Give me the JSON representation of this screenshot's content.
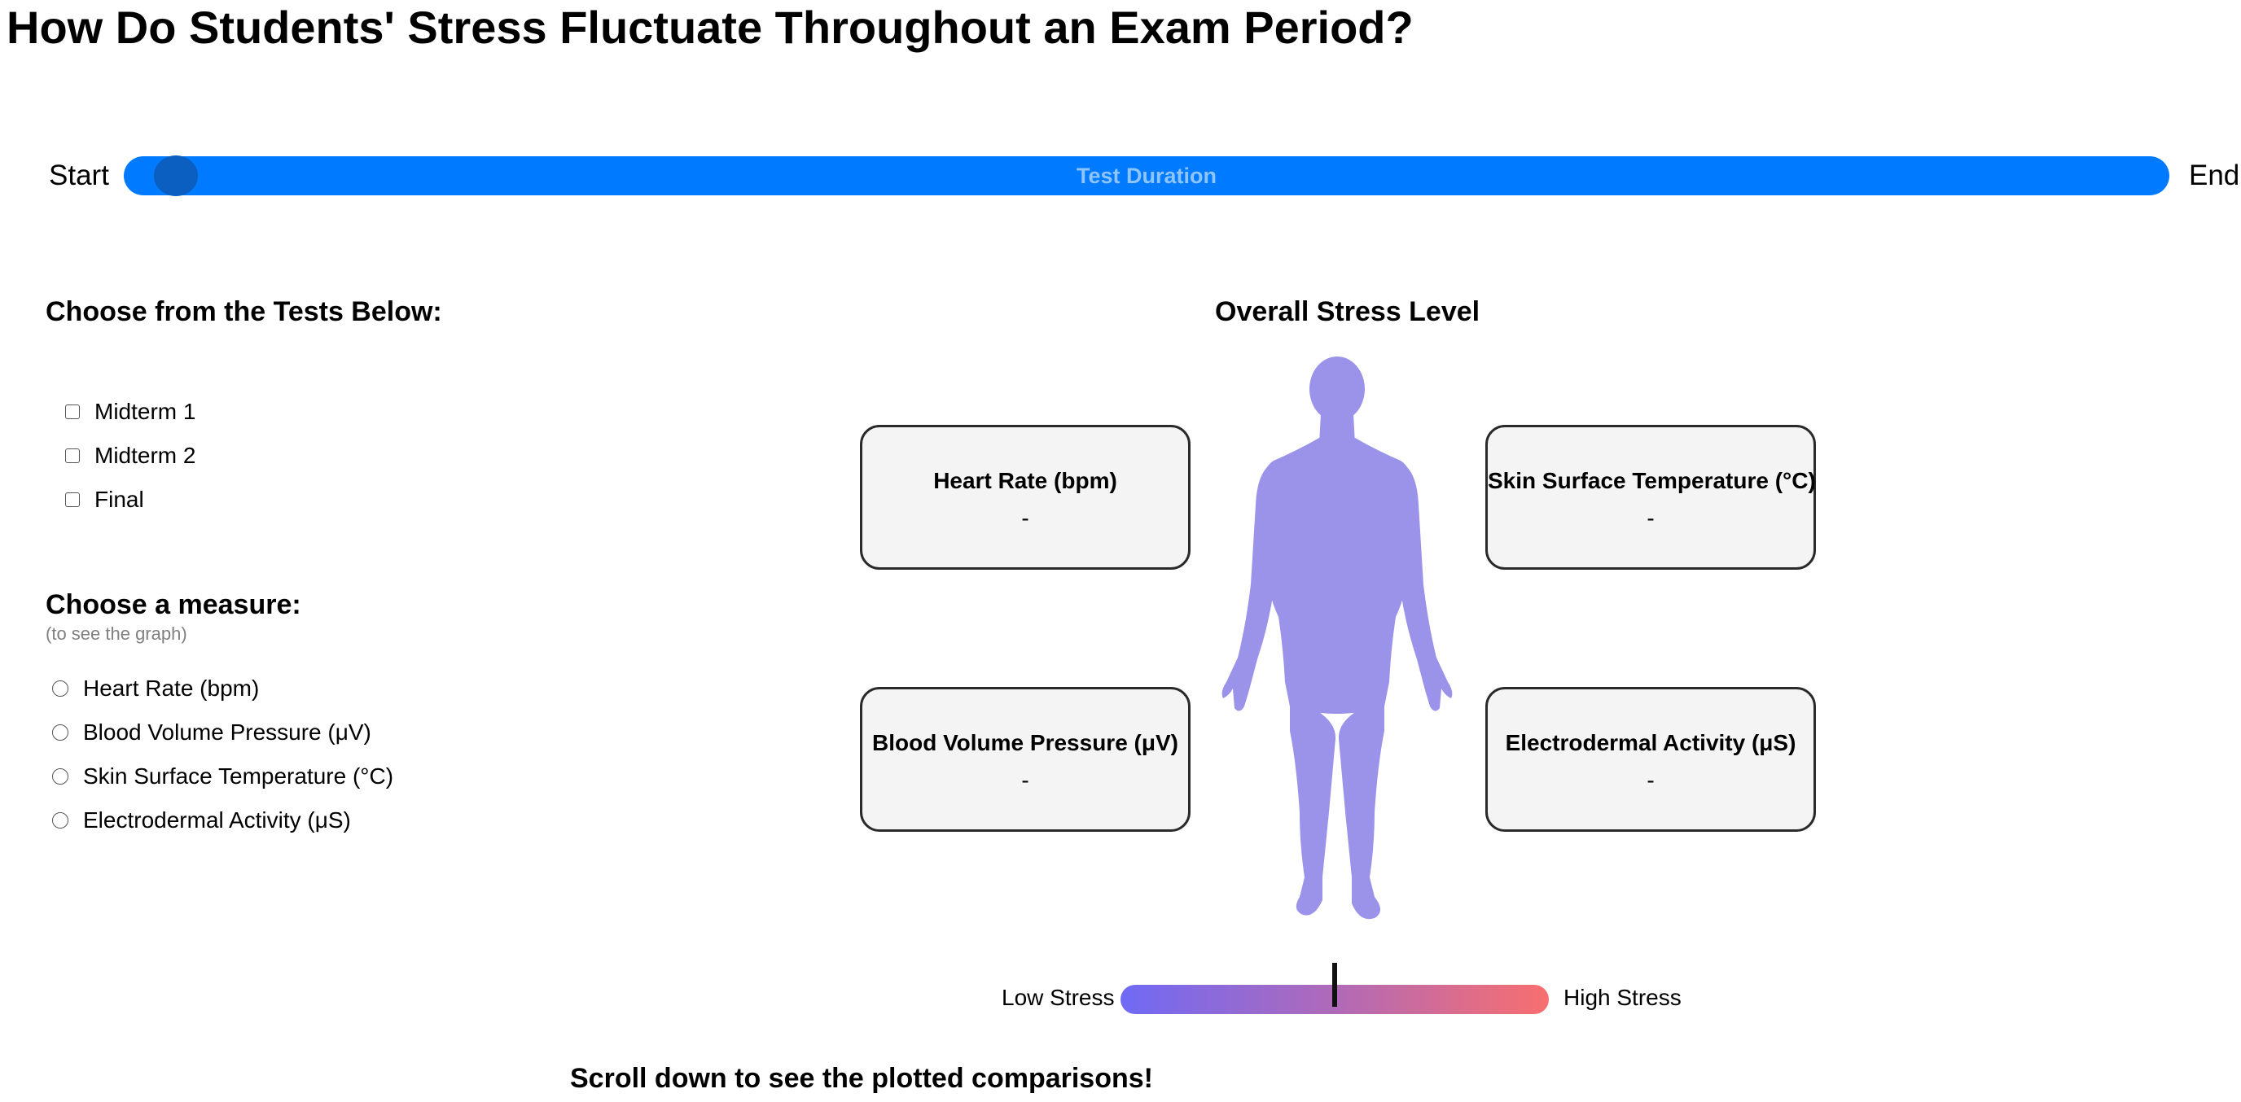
{
  "title": "How Do Students' Stress Fluctuate Throughout an Exam Period?",
  "timeline": {
    "start_label": "Start",
    "end_label": "End",
    "track_label": "Test Duration",
    "position": 0.015
  },
  "tests": {
    "heading": "Choose from the Tests Below:",
    "options": [
      {
        "label": "Midterm 1",
        "checked": false
      },
      {
        "label": "Midterm 2",
        "checked": false
      },
      {
        "label": "Final",
        "checked": false
      }
    ]
  },
  "measures": {
    "heading": "Choose a measure:",
    "subheading": "(to see the graph)",
    "options": [
      {
        "label": "Heart Rate (bpm)",
        "selected": false
      },
      {
        "label": "Blood Volume Pressure (μV)",
        "selected": false
      },
      {
        "label": "Skin Surface Temperature (°C)",
        "selected": false
      },
      {
        "label": "Electrodermal Activity (μS)",
        "selected": false
      }
    ]
  },
  "stress": {
    "title": "Overall Stress Level",
    "figure_color": "#9b93ea",
    "cards": {
      "heart_rate": {
        "label": "Heart Rate (bpm)",
        "value": "-"
      },
      "skin_temp": {
        "label": "Skin Surface Temperature (°C)",
        "value": "-"
      },
      "bvp": {
        "label": "Blood Volume Pressure (μV)",
        "value": "-"
      },
      "eda": {
        "label": "Electrodermal Activity (μS)",
        "value": "-"
      }
    },
    "scale": {
      "low_label": "Low Stress",
      "high_label": "High Stress",
      "level": 0.5,
      "low_color": "#6f6af5",
      "high_color": "#f86f6f"
    }
  },
  "scroll_hint": "Scroll down to see the plotted comparisons!",
  "colors": {
    "accent": "#007bff",
    "thumb": "#0a5fc0"
  }
}
